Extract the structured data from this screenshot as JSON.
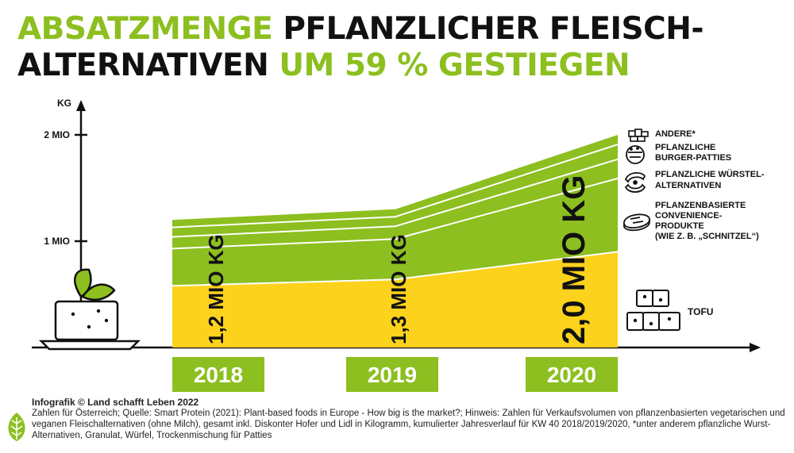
{
  "title": {
    "line1_accent": "ABSATZMENGE",
    "line1_rest": "PFLANZLICHER FLEISCH-",
    "line2_rest": "ALTERNATIVEN",
    "line2_accent": "UM 59 % GESTIEGEN"
  },
  "colors": {
    "accent": "#8cbf1f",
    "tofu": "#fcd21c",
    "text": "#111111"
  },
  "chart_data": {
    "type": "area",
    "stacked": true,
    "categories": [
      "2018",
      "2019",
      "2020"
    ],
    "ylabel": "KG",
    "y_ticks": [
      {
        "value": 1000000,
        "label": "1 MIO"
      },
      {
        "value": 2000000,
        "label": "2 MIO"
      }
    ],
    "ylim": [
      0,
      2000000
    ],
    "totals": [
      1200000,
      1300000,
      2000000
    ],
    "total_labels": [
      "1,2 MIO KG",
      "1,3 MIO KG",
      "2,0 MIO KG"
    ],
    "series": [
      {
        "name": "TOFU",
        "values": [
          580000,
          640000,
          900000
        ],
        "color": "#fcd21c",
        "icon": "tofu-icon"
      },
      {
        "name": "PFLANZENBASIERTE CONVENIENCE-PRODUKTE (WIE Z. B. „SCHNITZEL“)",
        "values": [
          350000,
          380000,
          690000
        ],
        "color": "#8cbf1f",
        "icon": "patty-icon"
      },
      {
        "name": "PFLANZLICHE WÜRSTEL-ALTERNATIVEN",
        "values": [
          110000,
          120000,
          180000
        ],
        "color": "#8cbf1f",
        "icon": "sausage-icon"
      },
      {
        "name": "PFLANZLICHE BURGER-PATTIES",
        "values": [
          90000,
          90000,
          140000
        ],
        "color": "#8cbf1f",
        "icon": "burger-icon"
      },
      {
        "name": "ANDERE*",
        "values": [
          70000,
          70000,
          90000
        ],
        "color": "#8cbf1f",
        "icon": "boxes-icon"
      }
    ],
    "grid": false
  },
  "footer": {
    "credit": "Infografik © Land schafft Leben 2022",
    "source": "Zahlen für Österreich; Quelle: Smart Protein (2021): Plant-based foods in Europe - How big is the market?; Hinweis: Zahlen für Verkaufsvolumen von pflanzenbasierten vegetarischen und veganen Fleischalternativen (ohne Milch), gesamt inkl. Diskonter Hofer und Lidl in Kilogramm, kumulierter Jahresverlauf für KW 40 2018/2019/2020, *unter anderem pflanzliche Wurst-Alternativen, Granulat, Würfel, Trockenmischung für Patties"
  }
}
